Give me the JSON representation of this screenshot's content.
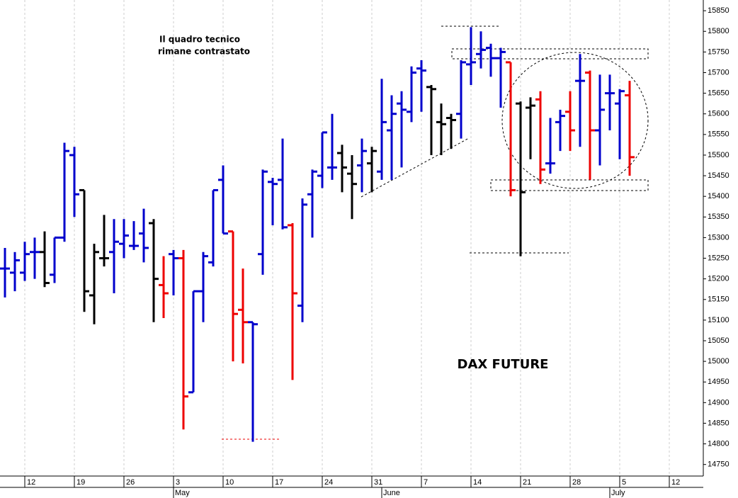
{
  "chart_data": {
    "type": "ohlc",
    "chart_label": "DAX FUTURE",
    "annotation_lines": [
      "Il quadro tecnico",
      "rimane contrastato"
    ],
    "categories": [
      null,
      null,
      "12",
      null,
      null,
      null,
      null,
      "19",
      null,
      null,
      null,
      null,
      "26",
      null,
      null,
      null,
      null,
      "3",
      null,
      null,
      null,
      null,
      "10",
      null,
      null,
      null,
      null,
      "17",
      null,
      null,
      null,
      null,
      "24",
      null,
      null,
      null,
      null,
      "31",
      null,
      null,
      null,
      null,
      "7",
      null,
      null,
      null,
      null,
      "14",
      null,
      null,
      null,
      null,
      "21",
      null,
      null,
      null,
      null,
      "28",
      null,
      null,
      null,
      null,
      "5",
      null,
      null,
      null,
      null,
      "12",
      null,
      null,
      null
    ],
    "month_categories": [
      null,
      null,
      null,
      null,
      null,
      null,
      null,
      null,
      null,
      null,
      null,
      null,
      null,
      null,
      null,
      null,
      null,
      "May",
      null,
      null,
      null,
      null,
      null,
      null,
      null,
      null,
      null,
      null,
      null,
      null,
      null,
      null,
      null,
      null,
      null,
      null,
      null,
      null,
      "June",
      null,
      null,
      null,
      null,
      null,
      null,
      null,
      null,
      null,
      null,
      null,
      null,
      null,
      null,
      null,
      null,
      null,
      null,
      null,
      null,
      null,
      null,
      "July",
      null,
      null,
      null,
      null,
      null,
      null,
      null,
      null,
      null
    ],
    "open": [
      15225,
      15215,
      15215,
      15265,
      15265,
      15210,
      15300,
      15500,
      15415,
      15160,
      15250,
      15265,
      15285,
      15280,
      15310,
      15335,
      15185,
      15260,
      15250,
      14925,
      15170,
      15240,
      15440,
      15315,
      15125,
      15095,
      15260,
      15435,
      15440,
      15330,
      15135,
      15405,
      15450,
      15470,
      15505,
      15455,
      15475,
      15480,
      15460,
      15560,
      15625,
      15605,
      15710,
      15665,
      15580,
      15590,
      15600,
      15720,
      15745,
      15760,
      15735,
      15725,
      15625,
      15615,
      15635,
      15480,
      15580,
      15605,
      15680,
      15700,
      15560,
      15650,
      15625,
      15645,
      null,
      null,
      null,
      null,
      null,
      null,
      null
    ],
    "high": [
      15275,
      15265,
      15290,
      15300,
      15315,
      15300,
      15530,
      15520,
      15415,
      15285,
      15355,
      15345,
      15345,
      15340,
      15370,
      15345,
      15255,
      15270,
      15270,
      15170,
      15265,
      15415,
      15475,
      15315,
      15225,
      15095,
      15465,
      15445,
      15540,
      15335,
      15395,
      15465,
      15555,
      15600,
      15525,
      15500,
      15540,
      15520,
      15685,
      15645,
      15655,
      15715,
      15730,
      15670,
      15625,
      15600,
      15730,
      15810,
      15800,
      15770,
      15760,
      15725,
      15630,
      15640,
      15655,
      15590,
      15610,
      15655,
      15745,
      15705,
      15695,
      15695,
      15660,
      15680,
      null,
      null,
      null,
      null,
      null,
      null,
      null
    ],
    "low": [
      15155,
      15170,
      15195,
      15200,
      15180,
      15190,
      15290,
      15350,
      15120,
      15090,
      15230,
      15165,
      15250,
      15270,
      15240,
      15095,
      15105,
      15160,
      14835,
      14925,
      15095,
      15230,
      15310,
      15000,
      14995,
      14805,
      15210,
      15330,
      15320,
      14955,
      15095,
      15300,
      15420,
      15440,
      15410,
      15345,
      15410,
      15410,
      15440,
      15440,
      15470,
      15580,
      15605,
      15500,
      15500,
      15515,
      15540,
      15670,
      15710,
      15690,
      15615,
      15400,
      15255,
      15490,
      15430,
      15455,
      15510,
      15510,
      15520,
      15440,
      15475,
      15560,
      15490,
      15450,
      null,
      null,
      null,
      null,
      null,
      null,
      null
    ],
    "close": [
      15225,
      15245,
      15260,
      15265,
      15190,
      15300,
      15510,
      15405,
      15170,
      15265,
      15250,
      15290,
      15305,
      15280,
      15275,
      15200,
      15165,
      15250,
      14915,
      15170,
      15255,
      15415,
      15310,
      15115,
      15095,
      15090,
      15460,
      15430,
      15325,
      15165,
      15380,
      15460,
      15555,
      15470,
      15470,
      15430,
      15510,
      15510,
      15580,
      15600,
      15610,
      15700,
      15705,
      15660,
      15575,
      15585,
      15725,
      15725,
      15755,
      15735,
      15750,
      15415,
      15410,
      15620,
      15465,
      15480,
      15595,
      15560,
      15680,
      15560,
      15610,
      15650,
      15655,
      15495,
      null,
      null,
      null,
      null,
      null,
      null,
      null
    ],
    "colors": [
      "#0000cc",
      "#0000cc",
      "#0000cc",
      "#0000cc",
      "#000000",
      "#0000cc",
      "#0000cc",
      "#0000cc",
      "#000000",
      "#000000",
      "#000000",
      "#0000cc",
      "#0000cc",
      "#0000cc",
      "#0000cc",
      "#000000",
      "#ee0000",
      "#0000cc",
      "#ee0000",
      "#0000cc",
      "#0000cc",
      "#0000cc",
      "#0000cc",
      "#ee0000",
      "#ee0000",
      "#0000cc",
      "#0000cc",
      "#0000cc",
      "#0000cc",
      "#ee0000",
      "#0000cc",
      "#0000cc",
      "#0000cc",
      "#0000cc",
      "#000000",
      "#000000",
      "#0000cc",
      "#000000",
      "#0000cc",
      "#0000cc",
      "#0000cc",
      "#0000cc",
      "#0000cc",
      "#000000",
      "#000000",
      "#000000",
      "#0000cc",
      "#0000cc",
      "#0000cc",
      "#0000cc",
      "#0000cc",
      "#ee0000",
      "#000000",
      "#000000",
      "#ee0000",
      "#0000cc",
      "#0000cc",
      "#ee0000",
      "#0000cc",
      "#ee0000",
      "#0000cc",
      "#0000cc",
      "#0000cc",
      "#ee0000",
      null,
      null,
      null,
      null,
      null,
      null,
      null
    ],
    "ylim": [
      14722,
      15876
    ],
    "yticks": [
      14750,
      14800,
      14850,
      14900,
      14950,
      15000,
      15050,
      15100,
      15150,
      15200,
      15250,
      15300,
      15350,
      15400,
      15450,
      15500,
      15550,
      15600,
      15650,
      15700,
      15750,
      15800,
      15850
    ],
    "grid": true
  }
}
